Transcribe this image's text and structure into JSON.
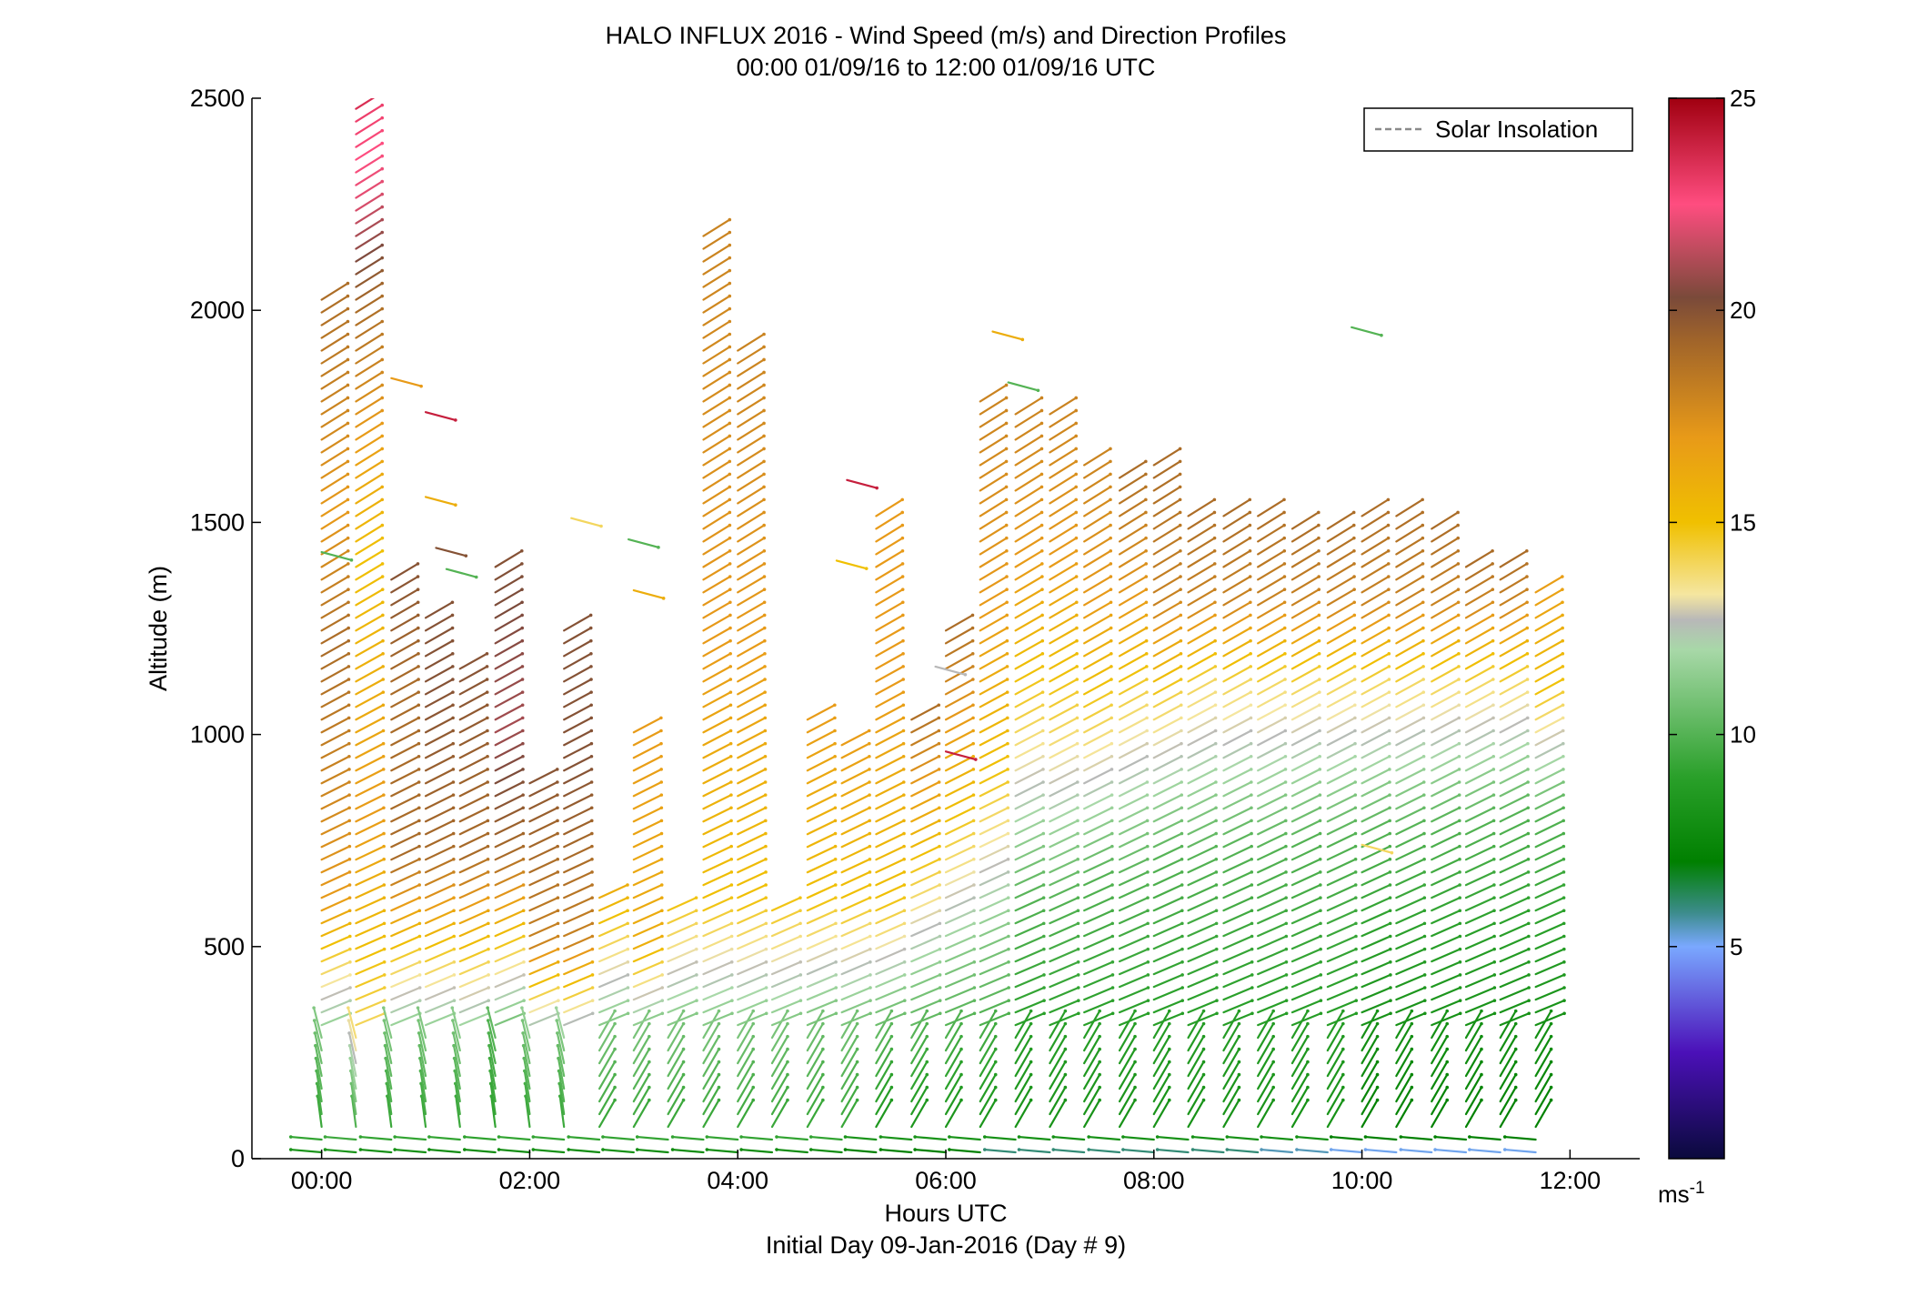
{
  "chart_data": {
    "type": "barb-profile",
    "title_line1": "HALO INFLUX 2016 - Wind Speed (m/s) and Direction Profiles",
    "title_line2": "00:00 01/09/16 to 12:00 01/09/16  UTC",
    "xlabel": "Hours UTC",
    "footer": "Initial Day 09-Jan-2016 (Day # 9)",
    "ylabel": "Altitude (m)",
    "xlim": [
      -0.67,
      12.67
    ],
    "ylim": [
      0,
      2500
    ],
    "x_ticks": [
      {
        "value": 0,
        "label": "00:00"
      },
      {
        "value": 2,
        "label": "02:00"
      },
      {
        "value": 4,
        "label": "04:00"
      },
      {
        "value": 6,
        "label": "06:00"
      },
      {
        "value": 8,
        "label": "08:00"
      },
      {
        "value": 10,
        "label": "10:00"
      },
      {
        "value": 12,
        "label": "12:00"
      }
    ],
    "y_ticks": [
      {
        "value": 0,
        "label": "0"
      },
      {
        "value": 500,
        "label": "500"
      },
      {
        "value": 1000,
        "label": "1000"
      },
      {
        "value": 1500,
        "label": "1500"
      },
      {
        "value": 2000,
        "label": "2000"
      },
      {
        "value": 2500,
        "label": "2500"
      }
    ],
    "legend": {
      "label": "Solar Insolation",
      "position": "top-right",
      "color": "#8a8a8a"
    },
    "colorbar": {
      "range": [
        0,
        25
      ],
      "ticks": [
        {
          "value": 5,
          "label": "5"
        },
        {
          "value": 10,
          "label": "10"
        },
        {
          "value": 15,
          "label": "15"
        },
        {
          "value": 20,
          "label": "20"
        },
        {
          "value": 25,
          "label": "25"
        }
      ],
      "unit": "ms",
      "unit_exp": "-1",
      "stops": [
        {
          "v": 0,
          "c": "#0a0a3c"
        },
        {
          "v": 2.5,
          "c": "#4b10b8"
        },
        {
          "v": 5,
          "c": "#7aa8ff"
        },
        {
          "v": 5.8,
          "c": "#3c8c8c"
        },
        {
          "v": 7,
          "c": "#008000"
        },
        {
          "v": 9,
          "c": "#2aa02a"
        },
        {
          "v": 12,
          "c": "#a8d8a8"
        },
        {
          "v": 12.7,
          "c": "#b8b8b8"
        },
        {
          "v": 13.3,
          "c": "#f5e6a0"
        },
        {
          "v": 15,
          "c": "#f0c000"
        },
        {
          "v": 17,
          "c": "#e89a18"
        },
        {
          "v": 19.3,
          "c": "#a0642a"
        },
        {
          "v": 20.3,
          "c": "#7a4a3a"
        },
        {
          "v": 22.5,
          "c": "#ff4d80"
        },
        {
          "v": 25,
          "c": "#a00010"
        }
      ]
    },
    "profiles": [
      {
        "t": 0.0,
        "top": 2050,
        "speed": [
          [
            0,
            6
          ],
          [
            20,
            9
          ],
          [
            280,
            11
          ],
          [
            600,
            17
          ],
          [
            1200,
            19
          ],
          [
            1500,
            17
          ],
          [
            2050,
            19
          ]
        ]
      },
      {
        "t": 0.33,
        "top": 2500,
        "speed": [
          [
            0,
            6
          ],
          [
            20,
            9
          ],
          [
            300,
            14
          ],
          [
            800,
            17
          ],
          [
            1400,
            15
          ],
          [
            2000,
            19
          ],
          [
            2250,
            22
          ],
          [
            2450,
            23
          ],
          [
            2500,
            24
          ]
        ]
      },
      {
        "t": 0.67,
        "top": 1380,
        "speed": [
          [
            0,
            5
          ],
          [
            20,
            9
          ],
          [
            280,
            11
          ],
          [
            700,
            19
          ],
          [
            1100,
            19
          ],
          [
            1380,
            20
          ]
        ]
      },
      {
        "t": 1.0,
        "top": 1300,
        "speed": [
          [
            0,
            5
          ],
          [
            20,
            9
          ],
          [
            280,
            11
          ],
          [
            700,
            19
          ],
          [
            1100,
            20
          ],
          [
            1300,
            20
          ]
        ]
      },
      {
        "t": 1.33,
        "top": 1170,
        "speed": [
          [
            0,
            4
          ],
          [
            20,
            9
          ],
          [
            270,
            11
          ],
          [
            700,
            19
          ],
          [
            1170,
            20
          ]
        ]
      },
      {
        "t": 1.67,
        "top": 1400,
        "speed": [
          [
            0,
            4
          ],
          [
            20,
            9
          ],
          [
            270,
            10
          ],
          [
            700,
            19
          ],
          [
            1000,
            21
          ],
          [
            1400,
            20
          ]
        ]
      },
      {
        "t": 2.0,
        "top": 900,
        "speed": [
          [
            0,
            4
          ],
          [
            20,
            9
          ],
          [
            270,
            11
          ],
          [
            500,
            18
          ],
          [
            900,
            20
          ]
        ]
      },
      {
        "t": 2.33,
        "top": 1250,
        "speed": [
          [
            0,
            5
          ],
          [
            20,
            9
          ],
          [
            260,
            11
          ],
          [
            500,
            18
          ],
          [
            900,
            20
          ],
          [
            1250,
            20
          ]
        ]
      },
      {
        "t": 2.67,
        "top": 620,
        "speed": [
          [
            0,
            4
          ],
          [
            20,
            9
          ],
          [
            300,
            11
          ],
          [
            620,
            16
          ]
        ]
      },
      {
        "t": 3.0,
        "top": 1020,
        "speed": [
          [
            0,
            5
          ],
          [
            20,
            9
          ],
          [
            300,
            11
          ],
          [
            500,
            16
          ],
          [
            1020,
            17
          ]
        ]
      },
      {
        "t": 3.33,
        "top": 600,
        "speed": [
          [
            0,
            4
          ],
          [
            20,
            9
          ],
          [
            300,
            11
          ],
          [
            600,
            15
          ]
        ]
      },
      {
        "t": 3.67,
        "top": 2180,
        "speed": [
          [
            0,
            4
          ],
          [
            20,
            9
          ],
          [
            300,
            11
          ],
          [
            600,
            15
          ],
          [
            1200,
            17
          ],
          [
            2180,
            18
          ]
        ]
      },
      {
        "t": 4.0,
        "top": 1920,
        "speed": [
          [
            0,
            4
          ],
          [
            20,
            9
          ],
          [
            300,
            11
          ],
          [
            600,
            15
          ],
          [
            1200,
            17
          ],
          [
            1920,
            18
          ]
        ]
      },
      {
        "t": 4.33,
        "top": 600,
        "speed": [
          [
            0,
            4
          ],
          [
            20,
            9
          ],
          [
            300,
            11
          ],
          [
            600,
            15
          ]
        ]
      },
      {
        "t": 4.67,
        "top": 1050,
        "speed": [
          [
            0,
            4
          ],
          [
            20,
            9
          ],
          [
            330,
            11
          ],
          [
            600,
            15
          ],
          [
            1050,
            17
          ]
        ]
      },
      {
        "t": 5.0,
        "top": 1000,
        "speed": [
          [
            0,
            4
          ],
          [
            20,
            9
          ],
          [
            330,
            11
          ],
          [
            600,
            15
          ],
          [
            1000,
            17
          ]
        ]
      },
      {
        "t": 5.33,
        "top": 1530,
        "speed": [
          [
            0,
            4
          ],
          [
            20,
            8
          ],
          [
            360,
            11
          ],
          [
            600,
            15
          ],
          [
            1100,
            17
          ],
          [
            1530,
            17
          ]
        ]
      },
      {
        "t": 5.67,
        "top": 1050,
        "speed": [
          [
            0,
            4
          ],
          [
            20,
            8
          ],
          [
            400,
            11
          ],
          [
            700,
            15
          ],
          [
            1050,
            19
          ]
        ]
      },
      {
        "t": 6.0,
        "top": 1250,
        "speed": [
          [
            0,
            4
          ],
          [
            20,
            8
          ],
          [
            450,
            11
          ],
          [
            800,
            15
          ],
          [
            1250,
            19
          ]
        ]
      },
      {
        "t": 6.33,
        "top": 1800,
        "speed": [
          [
            0,
            4
          ],
          [
            20,
            8
          ],
          [
            500,
            11
          ],
          [
            900,
            15
          ],
          [
            1300,
            17
          ],
          [
            1800,
            18
          ]
        ]
      },
      {
        "t": 6.67,
        "top": 1770,
        "speed": [
          [
            0,
            4
          ],
          [
            30,
            8
          ],
          [
            600,
            10
          ],
          [
            1000,
            14
          ],
          [
            1400,
            17
          ],
          [
            1770,
            18
          ]
        ]
      },
      {
        "t": 7.0,
        "top": 1770,
        "speed": [
          [
            0,
            4
          ],
          [
            30,
            8
          ],
          [
            600,
            10
          ],
          [
            1000,
            14
          ],
          [
            1400,
            17
          ],
          [
            1770,
            18
          ]
        ]
      },
      {
        "t": 7.33,
        "top": 1650,
        "speed": [
          [
            0,
            4
          ],
          [
            30,
            8
          ],
          [
            650,
            10
          ],
          [
            1000,
            14
          ],
          [
            1300,
            17
          ],
          [
            1650,
            18
          ]
        ]
      },
      {
        "t": 7.67,
        "top": 1620,
        "speed": [
          [
            0,
            4
          ],
          [
            30,
            8
          ],
          [
            650,
            10
          ],
          [
            1050,
            14
          ],
          [
            1300,
            17
          ],
          [
            1620,
            19
          ]
        ]
      },
      {
        "t": 8.0,
        "top": 1650,
        "speed": [
          [
            0,
            4
          ],
          [
            30,
            8
          ],
          [
            700,
            10
          ],
          [
            1050,
            14
          ],
          [
            1300,
            18
          ],
          [
            1650,
            19
          ]
        ]
      },
      {
        "t": 8.33,
        "top": 1540,
        "speed": [
          [
            0,
            4
          ],
          [
            30,
            8
          ],
          [
            700,
            10
          ],
          [
            1100,
            14
          ],
          [
            1300,
            18
          ],
          [
            1540,
            19
          ]
        ]
      },
      {
        "t": 8.67,
        "top": 1520,
        "speed": [
          [
            0,
            4
          ],
          [
            30,
            8
          ],
          [
            720,
            10
          ],
          [
            1100,
            14
          ],
          [
            1300,
            18
          ],
          [
            1520,
            19
          ]
        ]
      },
      {
        "t": 9.0,
        "top": 1540,
        "speed": [
          [
            0,
            4
          ],
          [
            30,
            8
          ],
          [
            720,
            10
          ],
          [
            1100,
            14
          ],
          [
            1300,
            18
          ],
          [
            1540,
            19
          ]
        ]
      },
      {
        "t": 9.33,
        "top": 1490,
        "speed": [
          [
            0,
            4
          ],
          [
            40,
            8
          ],
          [
            740,
            10
          ],
          [
            1100,
            14
          ],
          [
            1300,
            18
          ],
          [
            1490,
            19
          ]
        ]
      },
      {
        "t": 9.67,
        "top": 1500,
        "speed": [
          [
            0,
            4
          ],
          [
            40,
            8
          ],
          [
            740,
            10
          ],
          [
            1100,
            14
          ],
          [
            1300,
            18
          ],
          [
            1500,
            19
          ]
        ]
      },
      {
        "t": 10.0,
        "top": 1540,
        "speed": [
          [
            0,
            4
          ],
          [
            40,
            7
          ],
          [
            760,
            10
          ],
          [
            1100,
            14
          ],
          [
            1300,
            18
          ],
          [
            1540,
            19
          ]
        ]
      },
      {
        "t": 10.33,
        "top": 1540,
        "speed": [
          [
            0,
            4
          ],
          [
            40,
            7
          ],
          [
            760,
            10
          ],
          [
            1100,
            14
          ],
          [
            1300,
            18
          ],
          [
            1540,
            19
          ]
        ]
      },
      {
        "t": 10.67,
        "top": 1490,
        "speed": [
          [
            0,
            4
          ],
          [
            40,
            7
          ],
          [
            780,
            10
          ],
          [
            1100,
            14
          ],
          [
            1300,
            18
          ],
          [
            1490,
            19
          ]
        ]
      },
      {
        "t": 11.0,
        "top": 1400,
        "speed": [
          [
            0,
            4
          ],
          [
            40,
            7
          ],
          [
            780,
            10
          ],
          [
            1100,
            14
          ],
          [
            1300,
            18
          ],
          [
            1400,
            19
          ]
        ]
      },
      {
        "t": 11.33,
        "top": 1400,
        "speed": [
          [
            0,
            4
          ],
          [
            40,
            7
          ],
          [
            800,
            10
          ],
          [
            1100,
            14
          ],
          [
            1300,
            18
          ],
          [
            1400,
            19
          ]
        ]
      },
      {
        "t": 11.67,
        "top": 1360,
        "speed": [
          [
            0,
            4
          ],
          [
            40,
            7
          ],
          [
            800,
            10
          ],
          [
            1100,
            15
          ],
          [
            1360,
            17
          ]
        ]
      }
    ],
    "isolated_barbs": [
      {
        "t": 0.0,
        "alt": 1430,
        "speed": 10
      },
      {
        "t": 0.67,
        "alt": 1840,
        "speed": 17
      },
      {
        "t": 1.0,
        "alt": 1760,
        "speed": 24
      },
      {
        "t": 1.0,
        "alt": 1560,
        "speed": 16
      },
      {
        "t": 1.2,
        "alt": 1390,
        "speed": 10
      },
      {
        "t": 1.1,
        "alt": 1440,
        "speed": 20
      },
      {
        "t": 2.4,
        "alt": 1510,
        "speed": 14
      },
      {
        "t": 2.95,
        "alt": 1460,
        "speed": 10
      },
      {
        "t": 3.0,
        "alt": 1340,
        "speed": 16
      },
      {
        "t": 5.05,
        "alt": 1600,
        "speed": 24
      },
      {
        "t": 4.95,
        "alt": 1410,
        "speed": 15
      },
      {
        "t": 5.9,
        "alt": 1160,
        "speed": 12.7
      },
      {
        "t": 6.0,
        "alt": 960,
        "speed": 24
      },
      {
        "t": 6.45,
        "alt": 1950,
        "speed": 16
      },
      {
        "t": 6.6,
        "alt": 1830,
        "speed": 10
      },
      {
        "t": 9.9,
        "alt": 1960,
        "speed": 10
      },
      {
        "t": 10.0,
        "alt": 740,
        "speed": 14
      }
    ]
  }
}
